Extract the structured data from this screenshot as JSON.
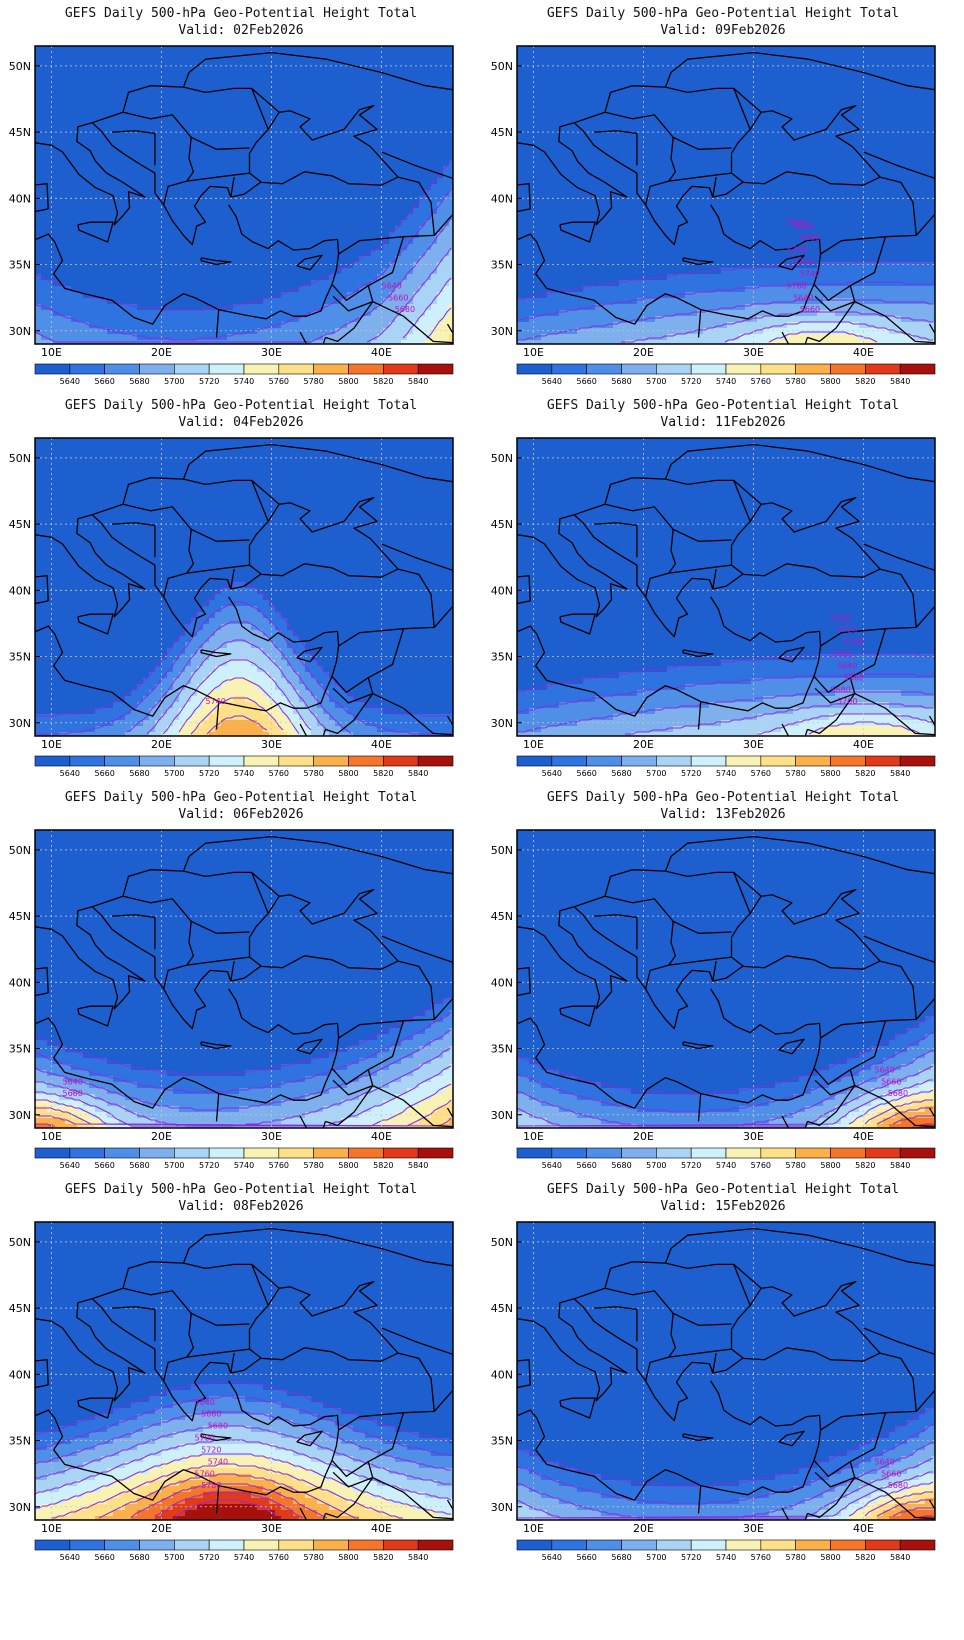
{
  "panels": [
    {
      "title": "GEFS Daily 500-hPa Geo-Potential Height Total",
      "valid": "Valid: 02Feb2026",
      "contour_labels": [
        "5640",
        "5660",
        "5680"
      ],
      "field": {
        "shape": "trough_se",
        "lowest_level": 5640,
        "ridge_lon": 43,
        "ridge_lat": 29.5
      }
    },
    {
      "title": "GEFS Daily 500-hPa Geo-Potential Height Total",
      "valid": "Valid: 09Feb2026",
      "contour_labels": [
        "5640",
        "5660",
        "5680",
        "5700",
        "5720",
        "5740",
        "5760",
        "5640",
        "5660"
      ],
      "field": {
        "shape": "zonal_south",
        "lowest_level": 5640,
        "ridge_lon": 36,
        "ridge_lat": 29.5
      }
    },
    {
      "title": "GEFS Daily 500-hPa Geo-Potential Height Total",
      "valid": "Valid: 04Feb2026",
      "contour_labels": [
        "5740"
      ],
      "field": {
        "shape": "ridge_north",
        "lowest_level": 5640,
        "ridge_lon": 27,
        "ridge_lat": 29.0
      }
    },
    {
      "title": "GEFS Daily 500-hPa Geo-Potential Height Total",
      "valid": "Valid: 11Feb2026",
      "contour_labels": [
        "5700",
        "5720",
        "5740",
        "5760",
        "5640",
        "5660",
        "5680",
        "5700"
      ],
      "field": {
        "shape": "zonal_south",
        "lowest_level": 5640,
        "ridge_lon": 40,
        "ridge_lat": 29.5
      }
    },
    {
      "title": "GEFS Daily 500-hPa Geo-Potential Height Total",
      "valid": "Valid: 06Feb2026",
      "contour_labels": [
        "5640",
        "5680"
      ],
      "field": {
        "shape": "trough_center",
        "lowest_level": 5640,
        "ridge_lon": 10,
        "ridge_lat": 29.5
      }
    },
    {
      "title": "GEFS Daily 500-hPa Geo-Potential Height Total",
      "valid": "Valid: 13Feb2026",
      "contour_labels": [
        "5640",
        "5660",
        "5680"
      ],
      "field": {
        "shape": "trough_center",
        "lowest_level": 5640,
        "ridge_lon": 44,
        "ridge_lat": 29.5
      }
    },
    {
      "title": "GEFS Daily 500-hPa Geo-Potential Height Total",
      "valid": "Valid: 08Feb2026",
      "contour_labels": [
        "5640",
        "5660",
        "5680",
        "5700",
        "5720",
        "5740",
        "5760",
        "5780"
      ],
      "field": {
        "shape": "ridge_center",
        "lowest_level": 5640,
        "ridge_lon": 26,
        "ridge_lat": 29.5
      }
    },
    {
      "title": "GEFS Daily 500-hPa Geo-Potential Height Total",
      "valid": "Valid: 15Feb2026",
      "contour_labels": [
        "5640",
        "5660",
        "5680"
      ],
      "field": {
        "shape": "trough_center",
        "lowest_level": 5640,
        "ridge_lon": 44,
        "ridge_lat": 29.5
      }
    }
  ],
  "lat_labels": [
    "50N",
    "45N",
    "40N",
    "35N",
    "30N"
  ],
  "lon_labels": [
    "10E",
    "20E",
    "30E",
    "40E"
  ],
  "colorbar": {
    "levels": [
      "5640",
      "5660",
      "5680",
      "5700",
      "5720",
      "5740",
      "5760",
      "5780",
      "5800",
      "5820",
      "5840"
    ],
    "colors": [
      "#1e5fd0",
      "#2f73e0",
      "#4f8fe8",
      "#7fb0ee",
      "#a9d4f5",
      "#cdf0fa",
      "#f8f3b4",
      "#fde087",
      "#fcb04c",
      "#f5752b",
      "#e03a1a",
      "#a8100c"
    ]
  },
  "colors": {
    "contour": "#8a2be2",
    "coast": "#000000",
    "grid": "#c8c8c8"
  }
}
